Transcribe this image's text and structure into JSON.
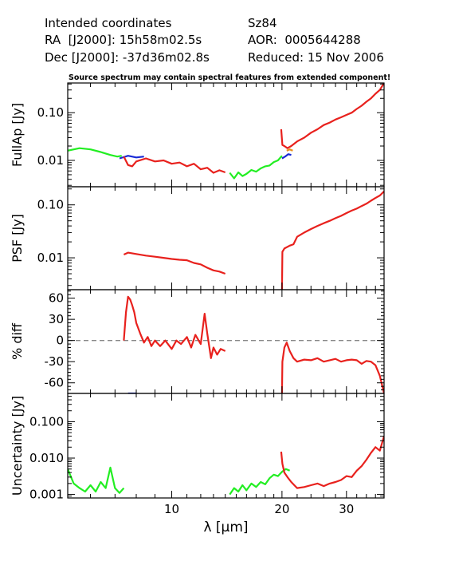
{
  "header": {
    "left": [
      "Intended coordinates",
      "RA  [J2000]: 15h58m02.5s",
      "Dec [J2000]: -37d36m02.8s"
    ],
    "right": [
      "Sz84",
      "AOR:  0005644288",
      "Reduced: 15 Nov 2006"
    ],
    "warning": "Source spectrum may contain spectral features from extended component!"
  },
  "chart_data": {
    "type": "line",
    "xlabel": "λ [μm]",
    "xscale": "log",
    "xlim": [
      5.2,
      38
    ],
    "xticks": [
      10,
      20,
      30
    ],
    "colors": {
      "green": "#22ee22",
      "blue": "#1a2bd6",
      "red": "#e8211d",
      "orange": "#e89020",
      "zero_line": "#888888"
    },
    "panels": [
      {
        "id": "fullap",
        "ylabel": "FullAp [Jy]",
        "yscale": "log",
        "ylim": [
          0.0028,
          0.42
        ],
        "yticks": [
          {
            "v": 0.01,
            "label": "0.01"
          },
          {
            "v": 0.1,
            "label": "0.10"
          }
        ],
        "series": [
          {
            "color": "green",
            "x": [
              5.2,
              5.6,
              6.0,
              6.4,
              6.8,
              7.1,
              7.3
            ],
            "y": [
              0.016,
              0.018,
              0.017,
              0.015,
              0.013,
              0.012,
              0.0125
            ]
          },
          {
            "color": "blue",
            "x": [
              7.2,
              7.6,
              8.0,
              8.4
            ],
            "y": [
              0.011,
              0.0125,
              0.0115,
              0.012
            ]
          },
          {
            "color": "red",
            "x": [
              7.4,
              7.6,
              7.8,
              8.0,
              8.5,
              9.0,
              9.5,
              10.0,
              10.5,
              11.0,
              11.5,
              12.0,
              12.5,
              13.0,
              13.5,
              14.0
            ],
            "y": [
              0.012,
              0.008,
              0.0075,
              0.0095,
              0.011,
              0.0095,
              0.01,
              0.0085,
              0.009,
              0.0075,
              0.0085,
              0.0065,
              0.007,
              0.0055,
              0.0062,
              0.0056
            ]
          },
          {
            "color": "green",
            "x": [
              14.4,
              14.8,
              15.2,
              15.6,
              16.0,
              16.5,
              17.0,
              17.5,
              18.0,
              18.5,
              19.0,
              19.5,
              20.0
            ],
            "y": [
              0.0055,
              0.0042,
              0.0056,
              0.0047,
              0.0052,
              0.0063,
              0.0058,
              0.0068,
              0.0075,
              0.0078,
              0.0092,
              0.01,
              0.0125
            ]
          },
          {
            "color": "blue",
            "x": [
              20.0,
              20.4,
              20.8,
              21.2
            ],
            "y": [
              0.011,
              0.012,
              0.0135,
              0.013
            ]
          },
          {
            "color": "orange",
            "x": [
              20.6,
              21.0,
              21.4
            ],
            "y": [
              0.016,
              0.017,
              0.016
            ]
          },
          {
            "color": "red",
            "x": [
              19.9,
              20.05,
              20.3,
              20.7,
              21.2,
              22.0,
              23.0,
              24.0,
              25.0,
              26.0,
              27.0,
              28.0,
              29.0,
              30.0,
              31.0,
              32.0,
              33.0,
              34.0,
              35.0,
              36.0,
              37.0,
              38.0
            ],
            "y": [
              0.045,
              0.021,
              0.02,
              0.018,
              0.02,
              0.025,
              0.03,
              0.038,
              0.045,
              0.055,
              0.062,
              0.072,
              0.08,
              0.09,
              0.1,
              0.12,
              0.14,
              0.17,
              0.2,
              0.25,
              0.3,
              0.42
            ]
          }
        ]
      },
      {
        "id": "psf",
        "ylabel": "PSF [Jy]",
        "yscale": "log",
        "ylim": [
          0.0025,
          0.22
        ],
        "yticks": [
          {
            "v": 0.01,
            "label": "0.01"
          },
          {
            "v": 0.1,
            "label": "0.10"
          }
        ],
        "series": [
          {
            "color": "red",
            "x": [
              7.4,
              7.6,
              8.0,
              8.5,
              9.0,
              9.5,
              10.0,
              10.5,
              11.0,
              11.5,
              12.0,
              12.5,
              13.0,
              13.5,
              14.0
            ],
            "y": [
              0.0115,
              0.0125,
              0.0118,
              0.011,
              0.0105,
              0.01,
              0.0095,
              0.0092,
              0.009,
              0.008,
              0.0075,
              0.0065,
              0.0058,
              0.0055,
              0.005
            ]
          },
          {
            "color": "red",
            "x": [
              20.0,
              20.05,
              20.3,
              21.0,
              21.5,
              22.0,
              23.0,
              24.0,
              25.0,
              26.0,
              27.0,
              28.0,
              29.0,
              30.0,
              31.0,
              32.0,
              33.0,
              34.0,
              35.0,
              36.0,
              37.0,
              38.0
            ],
            "y": [
              0.0025,
              0.013,
              0.015,
              0.017,
              0.018,
              0.025,
              0.03,
              0.035,
              0.04,
              0.045,
              0.05,
              0.056,
              0.062,
              0.07,
              0.078,
              0.085,
              0.095,
              0.105,
              0.12,
              0.135,
              0.15,
              0.18
            ]
          }
        ]
      },
      {
        "id": "diff",
        "ylabel": "% diff",
        "yscale": "linear",
        "ylim": [
          -75,
          72
        ],
        "yticks": [
          {
            "v": 60,
            "label": "60"
          },
          {
            "v": 30,
            "label": "30"
          },
          {
            "v": 0,
            "label": "0"
          },
          {
            "v": -30,
            "label": "-30"
          },
          {
            "v": -60,
            "label": "-60"
          }
        ],
        "series": [
          {
            "color": "red",
            "x": [
              7.4,
              7.5,
              7.6,
              7.7,
              7.8,
              7.9,
              8.0,
              8.2,
              8.4,
              8.6,
              8.8,
              9.0,
              9.3,
              9.6,
              10.0,
              10.3,
              10.6,
              11.0,
              11.3,
              11.6,
              12.0,
              12.3,
              12.5,
              12.8,
              13.0,
              13.3,
              13.6,
              14.0
            ],
            "y": [
              0,
              40,
              62,
              58,
              50,
              40,
              25,
              10,
              -3,
              5,
              -8,
              0,
              -8,
              0,
              -12,
              0,
              -5,
              5,
              -10,
              8,
              -5,
              38,
              10,
              -25,
              -10,
              -20,
              -12,
              -15
            ]
          },
          {
            "color": "blue",
            "x": [
              7.6,
              8.0
            ],
            "y": [
              -75,
              -75
            ]
          },
          {
            "color": "red",
            "x": [
              20.0,
              20.05,
              20.3,
              20.6,
              21.0,
              21.5,
              22.0,
              23.0,
              24.0,
              25.0,
              26.0,
              27.0,
              28.0,
              29.0,
              30.0,
              31.0,
              32.0,
              33.0,
              34.0,
              35.0,
              36.0,
              37.0,
              38.0
            ],
            "y": [
              -75,
              -30,
              -10,
              -3,
              -15,
              -25,
              -30,
              -27,
              -28,
              -25,
              -30,
              -28,
              -26,
              -30,
              -28,
              -27,
              -28,
              -33,
              -29,
              -30,
              -35,
              -50,
              -75
            ]
          }
        ]
      },
      {
        "id": "unc",
        "ylabel": "Uncertainty [Jy]",
        "yscale": "log",
        "ylim": [
          0.0008,
          0.6
        ],
        "yticks": [
          {
            "v": 0.001,
            "label": "0.001"
          },
          {
            "v": 0.01,
            "label": "0.010"
          },
          {
            "v": 0.1,
            "label": "0.100"
          }
        ],
        "series": [
          {
            "color": "green",
            "x": [
              5.2,
              5.4,
              5.6,
              5.8,
              6.0,
              6.2,
              6.4,
              6.6,
              6.8,
              7.0,
              7.2,
              7.4
            ],
            "y": [
              0.005,
              0.002,
              0.0015,
              0.0012,
              0.0018,
              0.0012,
              0.0022,
              0.0015,
              0.0055,
              0.0015,
              0.0011,
              0.0015
            ]
          },
          {
            "color": "green",
            "x": [
              14.4,
              14.8,
              15.2,
              15.6,
              16.0,
              16.5,
              17.0,
              17.5,
              18.0,
              18.5,
              19.0,
              19.5,
              20.0,
              20.5,
              21.0
            ],
            "y": [
              0.001,
              0.0015,
              0.0012,
              0.0018,
              0.0013,
              0.002,
              0.0016,
              0.0022,
              0.0019,
              0.0028,
              0.0035,
              0.0032,
              0.0042,
              0.005,
              0.0045
            ]
          },
          {
            "color": "red",
            "x": [
              19.9,
              20.05,
              20.3,
              20.7,
              21.2,
              22.0,
              23.0,
              24.0,
              25.0,
              26.0,
              27.0,
              28.0,
              29.0,
              30.0,
              31.0,
              32.0,
              33.0,
              34.0,
              35.0,
              36.0,
              37.0,
              38.0
            ],
            "y": [
              0.015,
              0.007,
              0.004,
              0.003,
              0.0022,
              0.0015,
              0.0016,
              0.0018,
              0.002,
              0.0017,
              0.002,
              0.0022,
              0.0025,
              0.0032,
              0.003,
              0.0045,
              0.006,
              0.009,
              0.014,
              0.02,
              0.016,
              0.04
            ]
          }
        ]
      }
    ]
  }
}
